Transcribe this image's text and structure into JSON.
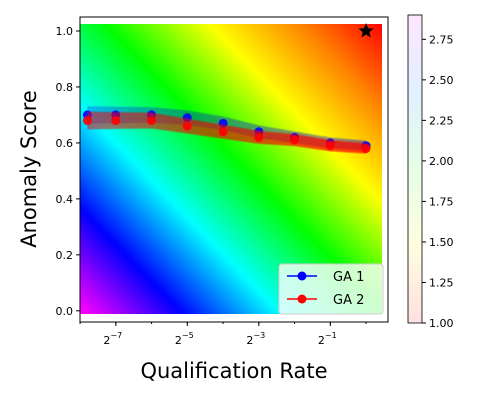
{
  "chart_data": {
    "type": "line",
    "xlabel": "Qualification Rate",
    "ylabel": "Anomaly Score",
    "x_scale": "log2",
    "xlim": [
      0.0039,
      1.53
    ],
    "ylim": [
      -0.04,
      1.05
    ],
    "xticks": [
      {
        "value": 0.0078125,
        "base": "2",
        "exp": "−7"
      },
      {
        "value": 0.03125,
        "base": "2",
        "exp": "−5"
      },
      {
        "value": 0.125,
        "base": "2",
        "exp": "−3"
      },
      {
        "value": 0.5,
        "base": "2",
        "exp": "−1"
      }
    ],
    "yticks": [
      {
        "value": 0.0,
        "label": "0.0"
      },
      {
        "value": 0.2,
        "label": "0.2"
      },
      {
        "value": 0.4,
        "label": "0.4"
      },
      {
        "value": 0.6,
        "label": "0.6"
      },
      {
        "value": 0.8,
        "label": "0.8"
      },
      {
        "value": 1.0,
        "label": "1.0"
      }
    ],
    "background": "hsv gradient over the plot area (value increases toward top-right)",
    "star_marker": {
      "x": 1.0,
      "y": 1.0
    },
    "series": [
      {
        "name": "GA 1",
        "color": "#0000ff",
        "x": [
          0.0045,
          0.0078,
          0.0156,
          0.0312,
          0.0625,
          0.125,
          0.25,
          0.5,
          1.0
        ],
        "y": [
          0.7,
          0.7,
          0.7,
          0.69,
          0.67,
          0.64,
          0.62,
          0.6,
          0.59
        ]
      },
      {
        "name": "GA 2",
        "color": "#ff0000",
        "x": [
          0.0045,
          0.0078,
          0.0156,
          0.0312,
          0.0625,
          0.125,
          0.25,
          0.5,
          1.0
        ],
        "y": [
          0.68,
          0.68,
          0.68,
          0.66,
          0.64,
          0.62,
          0.61,
          0.59,
          0.58
        ]
      }
    ],
    "colorbar": {
      "min": 1.0,
      "max": 2.9,
      "ticks": [
        "1.00",
        "1.25",
        "1.50",
        "1.75",
        "2.00",
        "2.25",
        "2.50",
        "2.75"
      ],
      "tick_values": [
        1.0,
        1.25,
        1.5,
        1.75,
        2.0,
        2.25,
        2.5,
        2.75
      ]
    },
    "legend": {
      "position": "lower-right"
    }
  }
}
